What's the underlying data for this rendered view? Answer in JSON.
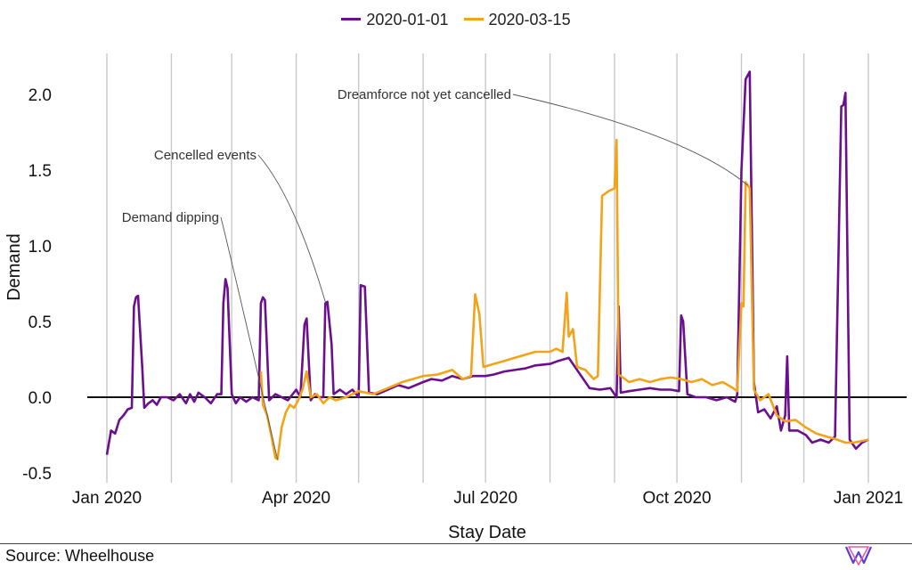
{
  "chart_data": {
    "type": "line",
    "title": "",
    "xlabel": "Stay Date",
    "ylabel": "Demand",
    "x_ticks": [
      "Jan 2020",
      "Apr 2020",
      "Jul 2020",
      "Oct 2020",
      "Jan 2021"
    ],
    "y_ticks": [
      "-0.5",
      "0.0",
      "0.5",
      "1.0",
      "1.5",
      "2.0"
    ],
    "ylim": [
      -0.55,
      2.3
    ],
    "xlim": [
      "2020-01-01",
      "2021-01-01"
    ],
    "grid": "vertical lines at month starts",
    "legend": {
      "position": "top",
      "entries": [
        "2020-01-01",
        "2020-03-15"
      ]
    },
    "series": [
      {
        "name": "2020-01-01",
        "color": "#6a0f8e",
        "points": [
          [
            "2020-01-01",
            -0.38
          ],
          [
            "2020-01-03",
            -0.22
          ],
          [
            "2020-01-05",
            -0.24
          ],
          [
            "2020-01-07",
            -0.15
          ],
          [
            "2020-01-09",
            -0.12
          ],
          [
            "2020-01-11",
            -0.08
          ],
          [
            "2020-01-13",
            -0.07
          ],
          [
            "2020-01-14",
            0.6
          ],
          [
            "2020-01-15",
            0.66
          ],
          [
            "2020-01-16",
            0.67
          ],
          [
            "2020-01-18",
            0.2
          ],
          [
            "2020-01-19",
            -0.07
          ],
          [
            "2020-01-21",
            -0.04
          ],
          [
            "2020-01-23",
            -0.02
          ],
          [
            "2020-01-25",
            -0.05
          ],
          [
            "2020-01-27",
            0.0
          ],
          [
            "2020-01-30",
            0.0
          ],
          [
            "2020-02-02",
            -0.02
          ],
          [
            "2020-02-05",
            0.02
          ],
          [
            "2020-02-08",
            -0.04
          ],
          [
            "2020-02-10",
            0.02
          ],
          [
            "2020-02-12",
            -0.03
          ],
          [
            "2020-02-14",
            0.03
          ],
          [
            "2020-02-17",
            0.0
          ],
          [
            "2020-02-20",
            -0.04
          ],
          [
            "2020-02-23",
            0.02
          ],
          [
            "2020-02-25",
            0.02
          ],
          [
            "2020-02-26",
            0.62
          ],
          [
            "2020-02-27",
            0.78
          ],
          [
            "2020-02-28",
            0.72
          ],
          [
            "2020-03-01",
            0.02
          ],
          [
            "2020-03-03",
            -0.04
          ],
          [
            "2020-03-05",
            0.0
          ],
          [
            "2020-03-08",
            -0.03
          ],
          [
            "2020-03-11",
            0.0
          ],
          [
            "2020-03-14",
            -0.02
          ],
          [
            "2020-03-15",
            0.62
          ],
          [
            "2020-03-16",
            0.66
          ],
          [
            "2020-03-17",
            0.64
          ],
          [
            "2020-03-19",
            -0.02
          ],
          [
            "2020-03-22",
            0.02
          ],
          [
            "2020-03-25",
            0.0
          ],
          [
            "2020-03-28",
            -0.02
          ],
          [
            "2020-04-01",
            0.05
          ],
          [
            "2020-04-03",
            0.0
          ],
          [
            "2020-04-05",
            0.48
          ],
          [
            "2020-04-06",
            0.52
          ],
          [
            "2020-04-08",
            -0.02
          ],
          [
            "2020-04-10",
            0.02
          ],
          [
            "2020-04-12",
            0.0
          ],
          [
            "2020-04-14",
            0.0
          ],
          [
            "2020-04-15",
            0.62
          ],
          [
            "2020-04-16",
            0.63
          ],
          [
            "2020-04-18",
            0.35
          ],
          [
            "2020-04-19",
            0.02
          ],
          [
            "2020-04-22",
            0.05
          ],
          [
            "2020-04-25",
            0.02
          ],
          [
            "2020-04-28",
            0.05
          ],
          [
            "2020-05-01",
            0.0
          ],
          [
            "2020-05-02",
            0.74
          ],
          [
            "2020-05-04",
            0.73
          ],
          [
            "2020-05-06",
            0.03
          ],
          [
            "2020-05-10",
            0.02
          ],
          [
            "2020-05-15",
            0.05
          ],
          [
            "2020-05-20",
            0.08
          ],
          [
            "2020-05-25",
            0.06
          ],
          [
            "2020-06-01",
            0.1
          ],
          [
            "2020-06-05",
            0.12
          ],
          [
            "2020-06-10",
            0.11
          ],
          [
            "2020-06-15",
            0.14
          ],
          [
            "2020-06-20",
            0.12
          ],
          [
            "2020-06-25",
            0.14
          ],
          [
            "2020-07-01",
            0.14
          ],
          [
            "2020-07-05",
            0.15
          ],
          [
            "2020-07-10",
            0.17
          ],
          [
            "2020-07-15",
            0.18
          ],
          [
            "2020-07-20",
            0.19
          ],
          [
            "2020-07-25",
            0.21
          ],
          [
            "2020-08-01",
            0.22
          ],
          [
            "2020-08-05",
            0.24
          ],
          [
            "2020-08-10",
            0.26
          ],
          [
            "2020-08-12",
            0.22
          ],
          [
            "2020-08-15",
            0.16
          ],
          [
            "2020-08-20",
            0.06
          ],
          [
            "2020-08-25",
            0.05
          ],
          [
            "2020-08-30",
            0.06
          ],
          [
            "2020-09-02",
            0.0
          ],
          [
            "2020-09-03",
            0.6
          ],
          [
            "2020-09-04",
            0.03
          ],
          [
            "2020-09-08",
            0.04
          ],
          [
            "2020-09-13",
            0.05
          ],
          [
            "2020-09-18",
            0.06
          ],
          [
            "2020-09-23",
            0.05
          ],
          [
            "2020-09-28",
            0.05
          ],
          [
            "2020-10-02",
            0.04
          ],
          [
            "2020-10-03",
            0.54
          ],
          [
            "2020-10-04",
            0.5
          ],
          [
            "2020-10-06",
            0.02
          ],
          [
            "2020-10-10",
            0.0
          ],
          [
            "2020-10-15",
            0.0
          ],
          [
            "2020-10-20",
            -0.02
          ],
          [
            "2020-10-25",
            0.0
          ],
          [
            "2020-10-29",
            -0.03
          ],
          [
            "2020-10-30",
            0.02
          ],
          [
            "2020-11-01",
            1.5
          ],
          [
            "2020-11-03",
            2.1
          ],
          [
            "2020-11-05",
            2.15
          ],
          [
            "2020-11-07",
            0.1
          ],
          [
            "2020-11-09",
            -0.1
          ],
          [
            "2020-11-12",
            -0.08
          ],
          [
            "2020-11-15",
            -0.14
          ],
          [
            "2020-11-18",
            -0.06
          ],
          [
            "2020-11-20",
            -0.22
          ],
          [
            "2020-11-22",
            -0.12
          ],
          [
            "2020-11-23",
            0.27
          ],
          [
            "2020-11-24",
            -0.22
          ],
          [
            "2020-11-28",
            -0.22
          ],
          [
            "2020-12-02",
            -0.25
          ],
          [
            "2020-12-05",
            -0.3
          ],
          [
            "2020-12-09",
            -0.28
          ],
          [
            "2020-12-13",
            -0.3
          ],
          [
            "2020-12-16",
            -0.26
          ],
          [
            "2020-12-19",
            1.92
          ],
          [
            "2020-12-20",
            1.93
          ],
          [
            "2020-12-21",
            2.01
          ],
          [
            "2020-12-23",
            -0.28
          ],
          [
            "2020-12-26",
            -0.34
          ],
          [
            "2020-12-29",
            -0.3
          ],
          [
            "2021-01-01",
            -0.28
          ]
        ]
      },
      {
        "name": "2020-03-15",
        "color": "#f2a31a",
        "points": [
          [
            "2020-03-15",
            0.17
          ],
          [
            "2020-03-16",
            -0.05
          ],
          [
            "2020-03-18",
            -0.12
          ],
          [
            "2020-03-20",
            -0.25
          ],
          [
            "2020-03-22",
            -0.4
          ],
          [
            "2020-03-23",
            -0.41
          ],
          [
            "2020-03-25",
            -0.2
          ],
          [
            "2020-03-27",
            -0.1
          ],
          [
            "2020-03-29",
            -0.05
          ],
          [
            "2020-03-31",
            -0.07
          ],
          [
            "2020-04-02",
            -0.02
          ],
          [
            "2020-04-04",
            0.05
          ],
          [
            "2020-04-06",
            0.17
          ],
          [
            "2020-04-08",
            0.0
          ],
          [
            "2020-04-11",
            0.02
          ],
          [
            "2020-04-14",
            -0.04
          ],
          [
            "2020-04-17",
            0.0
          ],
          [
            "2020-04-20",
            -0.02
          ],
          [
            "2020-04-25",
            0.0
          ],
          [
            "2020-05-01",
            0.04
          ],
          [
            "2020-05-08",
            0.02
          ],
          [
            "2020-05-15",
            0.06
          ],
          [
            "2020-05-22",
            0.1
          ],
          [
            "2020-06-01",
            0.14
          ],
          [
            "2020-06-08",
            0.15
          ],
          [
            "2020-06-15",
            0.18
          ],
          [
            "2020-06-20",
            0.12
          ],
          [
            "2020-06-24",
            0.14
          ],
          [
            "2020-06-26",
            0.68
          ],
          [
            "2020-06-28",
            0.55
          ],
          [
            "2020-06-30",
            0.2
          ],
          [
            "2020-07-05",
            0.22
          ],
          [
            "2020-07-10",
            0.24
          ],
          [
            "2020-07-15",
            0.26
          ],
          [
            "2020-07-20",
            0.28
          ],
          [
            "2020-07-25",
            0.3
          ],
          [
            "2020-08-01",
            0.3
          ],
          [
            "2020-08-04",
            0.32
          ],
          [
            "2020-08-07",
            0.3
          ],
          [
            "2020-08-09",
            0.69
          ],
          [
            "2020-08-10",
            0.4
          ],
          [
            "2020-08-12",
            0.45
          ],
          [
            "2020-08-14",
            0.2
          ],
          [
            "2020-08-18",
            0.18
          ],
          [
            "2020-08-22",
            0.12
          ],
          [
            "2020-08-24",
            0.14
          ],
          [
            "2020-08-26",
            1.33
          ],
          [
            "2020-08-29",
            1.36
          ],
          [
            "2020-09-01",
            1.38
          ],
          [
            "2020-09-02",
            1.7
          ],
          [
            "2020-09-03",
            0.15
          ],
          [
            "2020-09-08",
            0.1
          ],
          [
            "2020-09-13",
            0.12
          ],
          [
            "2020-09-18",
            0.1
          ],
          [
            "2020-09-23",
            0.12
          ],
          [
            "2020-09-28",
            0.13
          ],
          [
            "2020-10-03",
            0.12
          ],
          [
            "2020-10-08",
            0.1
          ],
          [
            "2020-10-13",
            0.12
          ],
          [
            "2020-10-18",
            0.08
          ],
          [
            "2020-10-23",
            0.1
          ],
          [
            "2020-10-28",
            0.06
          ],
          [
            "2020-10-30",
            0.04
          ],
          [
            "2020-11-01",
            0.62
          ],
          [
            "2020-11-02",
            0.6
          ],
          [
            "2020-11-03",
            1.42
          ],
          [
            "2020-11-05",
            1.38
          ],
          [
            "2020-11-07",
            0.05
          ],
          [
            "2020-11-10",
            -0.02
          ],
          [
            "2020-11-14",
            0.02
          ],
          [
            "2020-11-18",
            -0.12
          ],
          [
            "2020-11-22",
            -0.16
          ],
          [
            "2020-11-27",
            -0.15
          ],
          [
            "2020-12-02",
            -0.2
          ],
          [
            "2020-12-07",
            -0.24
          ],
          [
            "2020-12-12",
            -0.26
          ],
          [
            "2020-12-17",
            -0.28
          ],
          [
            "2020-12-21",
            -0.3
          ],
          [
            "2020-12-25",
            -0.3
          ],
          [
            "2021-01-01",
            -0.28
          ]
        ]
      }
    ],
    "annotations": [
      {
        "label": "Demand dipping",
        "target": [
          "2020-03-23",
          -0.41
        ]
      },
      {
        "label": "Cencelled events",
        "target": [
          "2020-04-15",
          0.63
        ]
      },
      {
        "label": "Dreamforce not yet cancelled",
        "target": [
          "2020-11-04",
          1.4
        ]
      }
    ]
  },
  "footer": {
    "source": "Source: Wheelhouse",
    "logo_colors": [
      "#5b3fd6",
      "#e05aa8"
    ]
  }
}
